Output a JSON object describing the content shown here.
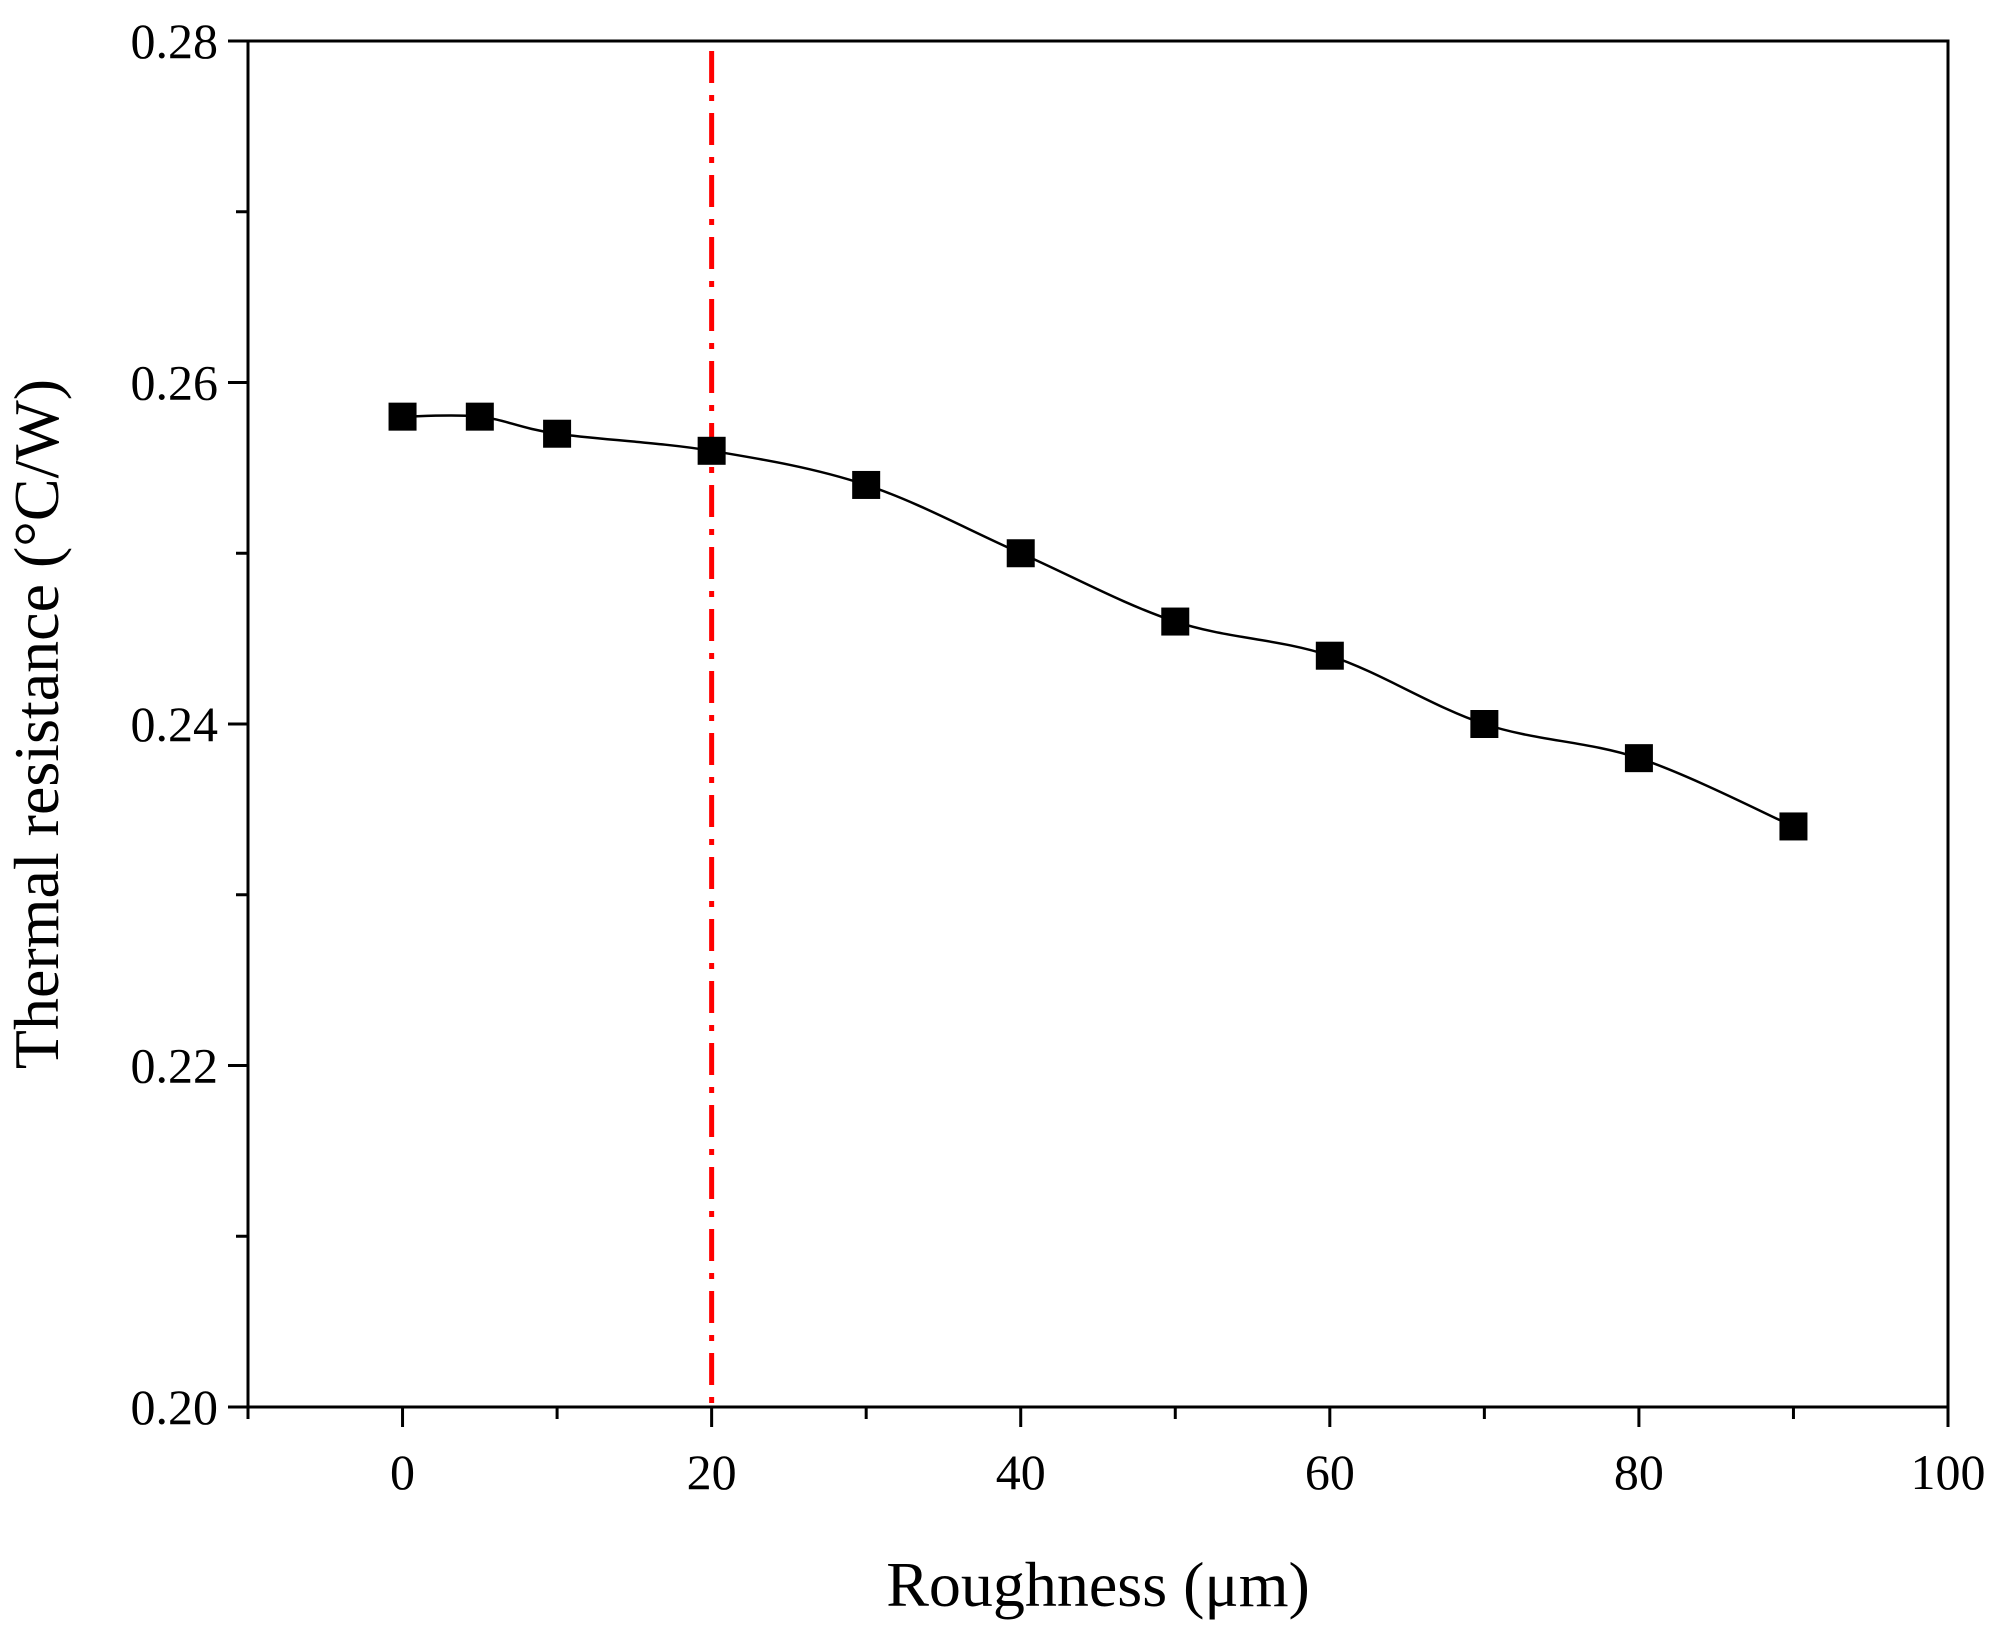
{
  "chart_data": {
    "type": "line",
    "title": "",
    "xlabel": "Roughness (μm)",
    "ylabel": "Thermal resistance (°C/W)",
    "xlim": [
      -10,
      100
    ],
    "ylim": [
      0.2,
      0.28
    ],
    "x_ticks": [
      {
        "value": 0,
        "label": "0"
      },
      {
        "value": 20,
        "label": "20"
      },
      {
        "value": 40,
        "label": "40"
      },
      {
        "value": 60,
        "label": "60"
      },
      {
        "value": 80,
        "label": "80"
      },
      {
        "value": 100,
        "label": "100"
      }
    ],
    "y_ticks": [
      {
        "value": 0.2,
        "label": "0.20"
      },
      {
        "value": 0.22,
        "label": "0.22"
      },
      {
        "value": 0.24,
        "label": "0.24"
      },
      {
        "value": 0.26,
        "label": "0.26"
      },
      {
        "value": 0.28,
        "label": "0.28"
      }
    ],
    "grid": false,
    "marker": "square",
    "series": [
      {
        "color": "#000000",
        "x": [
          0,
          5,
          10,
          20,
          30,
          40,
          50,
          60,
          70,
          80,
          90
        ],
        "y": [
          0.258,
          0.258,
          0.257,
          0.256,
          0.254,
          0.25,
          0.246,
          0.244,
          0.24,
          0.238,
          0.234
        ]
      }
    ],
    "reference_line": {
      "orientation": "vertical",
      "x": 20,
      "style": "dash-dot",
      "color": "#ff0000"
    }
  }
}
